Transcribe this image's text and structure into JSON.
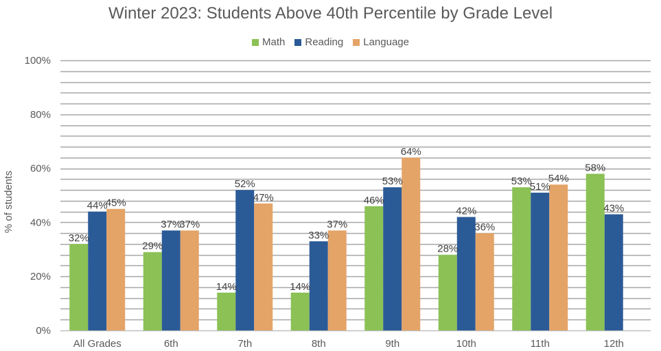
{
  "chart_data": {
    "type": "bar",
    "title": "Winter 2023: Students Above 40th Percentile by Grade Level",
    "xlabel": "",
    "ylabel": "% of students",
    "ylim": [
      0,
      100
    ],
    "yticks": [
      "0%",
      "20%",
      "40%",
      "60%",
      "80%",
      "100%"
    ],
    "categories": [
      "All Grades",
      "6th",
      "7th",
      "8th",
      "9th",
      "10th",
      "11th",
      "12th"
    ],
    "series": [
      {
        "name": "Math",
        "color": "#8BC155",
        "values": [
          32,
          29,
          14,
          14,
          46,
          28,
          53,
          58
        ],
        "labels": [
          "32%",
          "29%",
          "14%",
          "14%",
          "46%",
          "28%",
          "53%",
          "58%"
        ]
      },
      {
        "name": "Reading",
        "color": "#2B5B97",
        "values": [
          44,
          37,
          52,
          33,
          53,
          42,
          51,
          43
        ],
        "labels": [
          "44%",
          "37%",
          "52%",
          "33%",
          "53%",
          "42%",
          "51%",
          "43%"
        ]
      },
      {
        "name": "Language",
        "color": "#E4A468",
        "values": [
          45,
          37,
          47,
          37,
          64,
          36,
          54,
          null
        ],
        "labels": [
          "45%",
          "37%",
          "47%",
          "37%",
          "64%",
          "36%",
          "54%",
          ""
        ]
      }
    ],
    "grid": true,
    "legend_position": "top"
  }
}
